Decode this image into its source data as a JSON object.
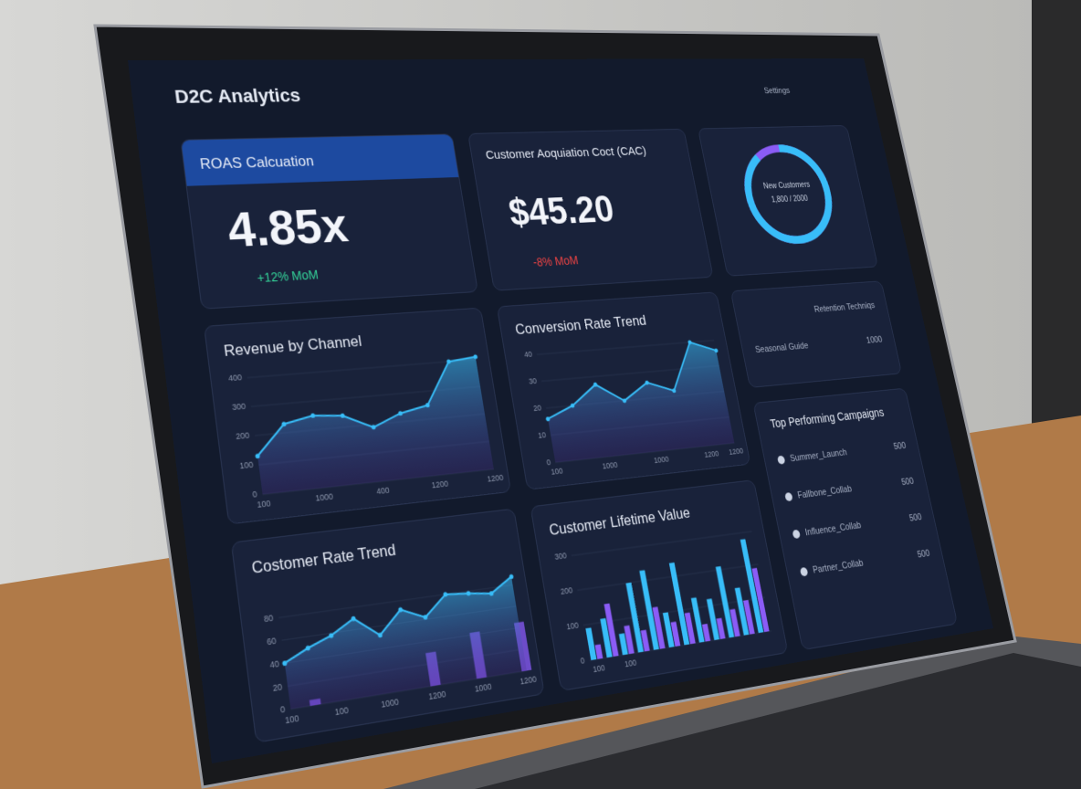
{
  "header": {
    "title": "D2C Analytics",
    "settings": "Settings"
  },
  "kpis": [
    {
      "title": "ROAS Calcuation",
      "value": "4.85x",
      "change": "+12% MoM"
    },
    {
      "title": "Customer Aoquiation Coct (CAC)",
      "value": "$45.20",
      "change": "-8% MoM"
    }
  ],
  "donut": {
    "label": "New Customers",
    "value_label": "1,800 / 2000",
    "value": 1800,
    "max": 2000,
    "color": "#38bdf8",
    "rest_color": "#8b5cf6"
  },
  "side_panel": {
    "rows": [
      [
        "Retention Techniqs",
        null
      ],
      [
        "Seasonal Guide",
        "1000"
      ]
    ]
  },
  "campaigns": {
    "title": "Top Performing Campaigns",
    "rows": [
      [
        "Summer_Launch",
        "500"
      ],
      [
        "Fallbone_Collab",
        "500"
      ],
      [
        "Influence_Collab",
        "500"
      ],
      [
        "Partner_Collab",
        "500"
      ]
    ]
  },
  "revenue_chart": {
    "type": "area",
    "title": "Revenue by Channel",
    "categories": [
      "100",
      null,
      "1000",
      null,
      "400",
      null,
      "1200",
      null,
      "1200"
    ],
    "values": [
      130,
      230,
      250,
      240,
      190,
      230,
      250,
      400,
      410
    ],
    "color": "#38bdf8",
    "ylim": [
      0,
      400
    ],
    "yticks": [
      0,
      100,
      200,
      300,
      400
    ],
    "grid": true
  },
  "conversion_chart": {
    "type": "area",
    "title": "Conversion Rate Trend",
    "categories": [
      "100",
      null,
      "1000",
      null,
      "1000",
      null,
      "1200",
      "1200"
    ],
    "values": [
      16,
      20,
      27,
      20,
      26,
      22,
      40,
      36
    ],
    "color": "#38bdf8",
    "ylim": [
      0,
      40
    ],
    "yticks": [
      0,
      10,
      20,
      30,
      40
    ],
    "grid": true
  },
  "customer_rate_chart": {
    "type": "area",
    "title": "Costomer Rate Trend",
    "categories": [
      "100",
      null,
      "100",
      null,
      "1000",
      null,
      "1200",
      null,
      "1000",
      null,
      "1200"
    ],
    "values": [
      40,
      50,
      58,
      70,
      52,
      72,
      62,
      80,
      78,
      75,
      88
    ],
    "bar_values": [
      null,
      5,
      null,
      null,
      null,
      null,
      30,
      null,
      42,
      null,
      45
    ],
    "color": "#38bdf8",
    "bar_color": "#6d4cc9",
    "ylim": [
      0,
      100
    ],
    "yticks": [
      0,
      20,
      40,
      60,
      80
    ],
    "grid": true
  },
  "clv_chart": {
    "type": "grouped_bar",
    "title": "Customer Lifetime Value",
    "categories": [
      "100",
      null,
      "100",
      null,
      null,
      null,
      null,
      null,
      null,
      null,
      null,
      null
    ],
    "series": [
      {
        "color": "#38bdf8",
        "values": [
          90,
          110,
          60,
          200,
          230,
          100,
          240,
          130,
          120,
          210,
          140,
          280
        ]
      },
      {
        "color": "#8b5cf6",
        "values": [
          40,
          150,
          80,
          60,
          120,
          70,
          90,
          50,
          60,
          80,
          100,
          190
        ]
      }
    ],
    "ylim": [
      0,
      300
    ],
    "yticks": [
      0,
      100,
      200,
      300
    ],
    "grid": true
  }
}
